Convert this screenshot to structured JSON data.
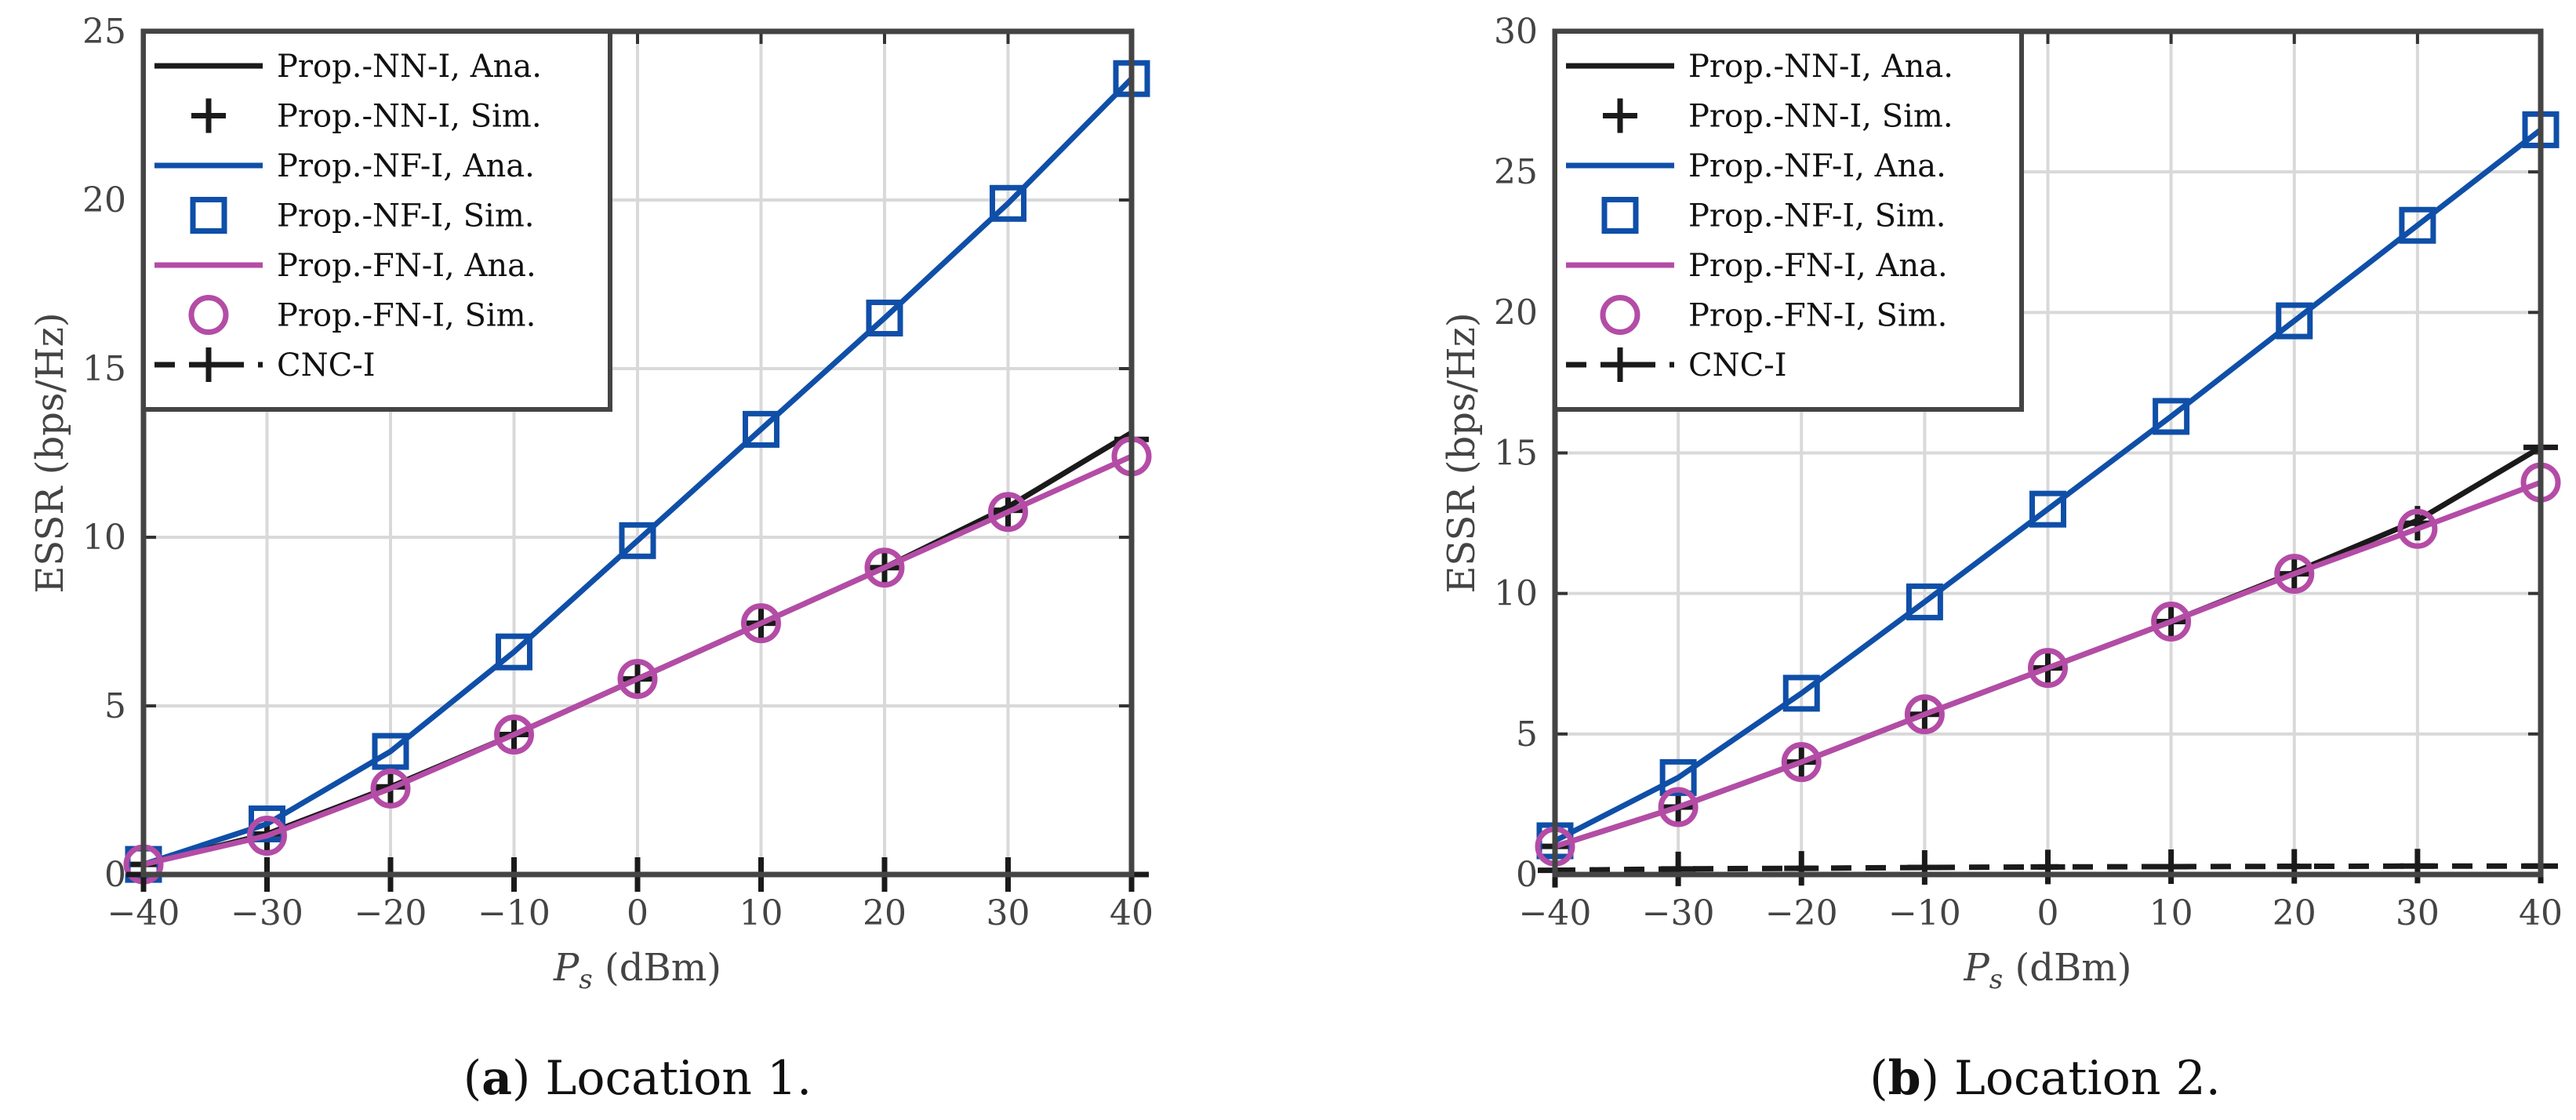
{
  "chart_data": [
    {
      "type": "line",
      "caption_letter": "a",
      "caption_text": " Location 1.",
      "xlabel_symbol": "P",
      "xlabel_subscript": "s",
      "xlabel_unit": " (dBm)",
      "ylabel": "ESSR (bps/Hz)",
      "xlim": [
        -40,
        40
      ],
      "ylim": [
        0,
        25
      ],
      "xticks": [
        -40,
        -30,
        -20,
        -10,
        0,
        10,
        20,
        30,
        40
      ],
      "xtick_labels": [
        "−40",
        "−30",
        "−20",
        "−10",
        "0",
        "10",
        "20",
        "30",
        "40"
      ],
      "yticks": [
        0,
        5,
        10,
        15,
        20,
        25
      ],
      "ytick_labels": [
        "0",
        "5",
        "10",
        "15",
        "20",
        "25"
      ],
      "grid": true,
      "legend_position": "top-left",
      "x": [
        -40,
        -30,
        -20,
        -10,
        0,
        10,
        20,
        30,
        40
      ],
      "series": [
        {
          "name": "Prop.-NN-I, Ana.",
          "color": "#1a1a1a",
          "line": "solid",
          "marker": "none",
          "values": [
            0.3,
            1.2,
            2.6,
            4.15,
            5.8,
            7.45,
            9.1,
            10.9,
            13.1
          ]
        },
        {
          "name": "Prop.-NN-I, Sim.",
          "color": "#1a1a1a",
          "line": "none",
          "marker": "plus",
          "values": [
            0.3,
            1.2,
            2.6,
            4.15,
            5.8,
            7.45,
            9.1,
            10.8,
            12.9
          ]
        },
        {
          "name": "Prop.-NF-I, Ana.",
          "color": "#0f4fa8",
          "line": "solid",
          "marker": "none",
          "values": [
            0.3,
            1.5,
            3.65,
            6.6,
            9.9,
            13.2,
            16.5,
            19.9,
            23.6
          ]
        },
        {
          "name": "Prop.-NF-I, Sim.",
          "color": "#0f4fa8",
          "line": "none",
          "marker": "square",
          "values": [
            0.3,
            1.5,
            3.65,
            6.6,
            9.9,
            13.2,
            16.5,
            19.9,
            23.6
          ]
        },
        {
          "name": "Prop.-FN-I, Ana.",
          "color": "#b44ca6",
          "line": "solid",
          "marker": "none",
          "values": [
            0.3,
            1.15,
            2.55,
            4.15,
            5.8,
            7.45,
            9.1,
            10.75,
            12.4
          ]
        },
        {
          "name": "Prop.-FN-I, Sim.",
          "color": "#b44ca6",
          "line": "none",
          "marker": "circle",
          "values": [
            0.3,
            1.15,
            2.55,
            4.15,
            5.8,
            7.45,
            9.1,
            10.75,
            12.4
          ]
        },
        {
          "name": "CNC-I",
          "color": "#1a1a1a",
          "line": "dashed",
          "marker": "plus",
          "values": [
            0.0,
            0.0,
            0.0,
            0.0,
            0.0,
            0.0,
            0.0,
            0.0,
            0.0
          ]
        }
      ]
    },
    {
      "type": "line",
      "caption_letter": "b",
      "caption_text": " Location 2.",
      "xlabel_symbol": "P",
      "xlabel_subscript": "s",
      "xlabel_unit": " (dBm)",
      "ylabel": "ESSR (bps/Hz)",
      "xlim": [
        -40,
        40
      ],
      "ylim": [
        0,
        30
      ],
      "xticks": [
        -40,
        -30,
        -20,
        -10,
        0,
        10,
        20,
        30,
        40
      ],
      "xtick_labels": [
        "−40",
        "−30",
        "−20",
        "−10",
        "0",
        "10",
        "20",
        "30",
        "40"
      ],
      "yticks": [
        0,
        5,
        10,
        15,
        20,
        25,
        30
      ],
      "ytick_labels": [
        "0",
        "5",
        "10",
        "15",
        "20",
        "25",
        "30"
      ],
      "grid": true,
      "legend_position": "top-left",
      "x": [
        -40,
        -30,
        -20,
        -10,
        0,
        10,
        20,
        30,
        40
      ],
      "series": [
        {
          "name": "Prop.-NN-I, Ana.",
          "color": "#1a1a1a",
          "line": "solid",
          "marker": "none",
          "values": [
            1.0,
            2.4,
            4.0,
            5.7,
            7.35,
            9.0,
            10.75,
            12.6,
            15.2
          ]
        },
        {
          "name": "Prop.-NN-I, Sim.",
          "color": "#1a1a1a",
          "line": "none",
          "marker": "plus",
          "values": [
            1.0,
            2.4,
            4.0,
            5.7,
            7.35,
            9.0,
            10.7,
            12.5,
            15.2
          ]
        },
        {
          "name": "Prop.-NF-I, Ana.",
          "color": "#0f4fa8",
          "line": "solid",
          "marker": "none",
          "values": [
            1.2,
            3.45,
            6.45,
            9.7,
            13.0,
            16.3,
            19.7,
            23.1,
            26.5
          ]
        },
        {
          "name": "Prop.-NF-I, Sim.",
          "color": "#0f4fa8",
          "line": "none",
          "marker": "square",
          "values": [
            1.2,
            3.45,
            6.45,
            9.7,
            13.0,
            16.3,
            19.7,
            23.1,
            26.5
          ]
        },
        {
          "name": "Prop.-FN-I, Ana.",
          "color": "#b44ca6",
          "line": "solid",
          "marker": "none",
          "values": [
            1.0,
            2.4,
            4.0,
            5.7,
            7.35,
            9.0,
            10.7,
            12.3,
            13.95
          ]
        },
        {
          "name": "Prop.-FN-I, Sim.",
          "color": "#b44ca6",
          "line": "none",
          "marker": "circle",
          "values": [
            1.0,
            2.4,
            4.0,
            5.7,
            7.35,
            9.0,
            10.7,
            12.3,
            13.95
          ]
        },
        {
          "name": "CNC-I",
          "color": "#1a1a1a",
          "line": "dashed",
          "marker": "plus",
          "values": [
            0.15,
            0.2,
            0.22,
            0.25,
            0.27,
            0.28,
            0.29,
            0.3,
            0.3
          ]
        }
      ]
    }
  ]
}
